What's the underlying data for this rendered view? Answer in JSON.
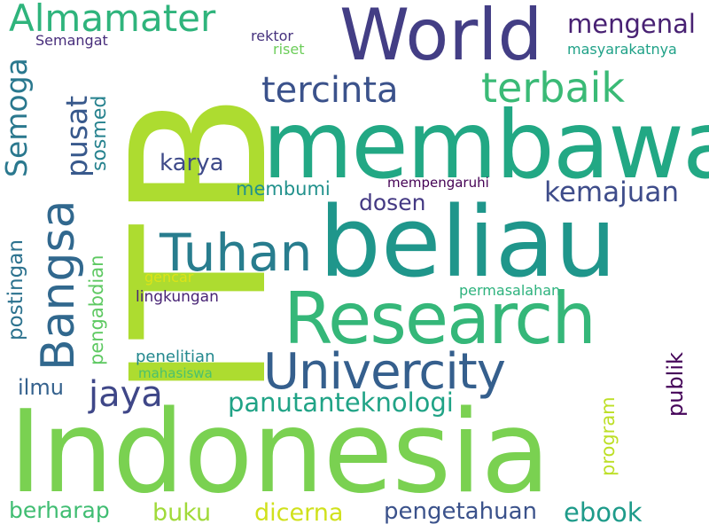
{
  "words": {
    "indonesia": {
      "text": "Indonesia",
      "color": "#7ad151"
    },
    "itb": {
      "text": "ITB",
      "color": "#addc30"
    },
    "membawa": {
      "text": "membawa",
      "color": "#22a884"
    },
    "beliau": {
      "text": "beliau",
      "color": "#1f968b"
    },
    "world": {
      "text": "World",
      "color": "#433e85"
    },
    "research": {
      "text": "Research",
      "color": "#35b779"
    },
    "univercity": {
      "text": "Univercity",
      "color": "#355f8d"
    },
    "tuhan": {
      "text": "Tuhan",
      "color": "#287d8e"
    },
    "bangsa": {
      "text": "Bangsa",
      "color": "#31688e"
    },
    "almamater": {
      "text": "Almamater",
      "color": "#2fb47c"
    },
    "terbaik": {
      "text": "terbaik",
      "color": "#3aba76"
    },
    "tercinta": {
      "text": "tercinta",
      "color": "#3b528b"
    },
    "mengenal": {
      "text": "mengenal",
      "color": "#482173"
    },
    "semoga": {
      "text": "Semoga",
      "color": "#2a788e"
    },
    "pusat": {
      "text": "pusat",
      "color": "#38598c"
    },
    "sosmed": {
      "text": "sosmed",
      "color": "#26828e"
    },
    "karya": {
      "text": "karya",
      "color": "#3e4a89"
    },
    "kemajuan": {
      "text": "kemajuan",
      "color": "#3e4c8a"
    },
    "membumi": {
      "text": "membumi",
      "color": "#21918c"
    },
    "dosen": {
      "text": "dosen",
      "color": "#443983"
    },
    "mempengaruhi": {
      "text": "mempengaruhi",
      "color": "#440154"
    },
    "semangat": {
      "text": "Semangat",
      "color": "#472d7b"
    },
    "rektor": {
      "text": "rektor",
      "color": "#46327e"
    },
    "riset": {
      "text": "riset",
      "color": "#6ccd5a"
    },
    "masyarakatnya": {
      "text": "masyarakatnya",
      "color": "#1fa187"
    },
    "postingan": {
      "text": "postingan",
      "color": "#2c728e"
    },
    "pengabdian": {
      "text": "pengabdian",
      "color": "#5ec962"
    },
    "gencar": {
      "text": "gencar",
      "color": "#dde318"
    },
    "lingkungan": {
      "text": "lingkungan",
      "color": "#482475"
    },
    "permasalahan": {
      "text": "permasalahan",
      "color": "#2db27d"
    },
    "publik": {
      "text": "publik",
      "color": "#450559"
    },
    "penelitian": {
      "text": "penelitian",
      "color": "#23888e"
    },
    "mahasiswa": {
      "text": "mahasiswa",
      "color": "#4ac16d"
    },
    "ilmu": {
      "text": "ilmu",
      "color": "#34618d"
    },
    "jaya": {
      "text": "jaya",
      "color": "#3f4788"
    },
    "panutanteknologi": {
      "text": "panutanteknologi",
      "color": "#20a386"
    },
    "program": {
      "text": "program",
      "color": "#bddf26"
    },
    "berharap": {
      "text": "berharap",
      "color": "#40bd72"
    },
    "buku": {
      "text": "buku",
      "color": "#a0da39"
    },
    "dicerna": {
      "text": "dicerna",
      "color": "#d0e11c"
    },
    "pengetahuan": {
      "text": "pengetahuan",
      "color": "#3b528b"
    },
    "ebook": {
      "text": "ebook",
      "color": "#1e9b8a"
    }
  }
}
